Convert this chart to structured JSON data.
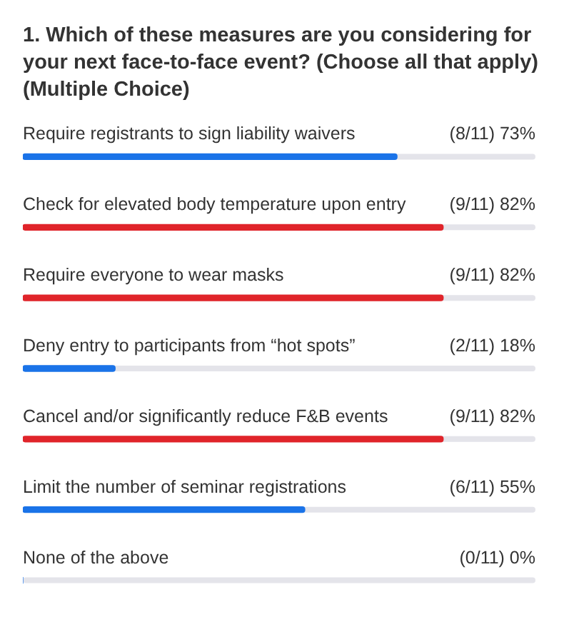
{
  "chart_data": {
    "type": "bar",
    "orientation": "horizontal",
    "title": "1. Which of these measures are you considering for your next face-to-face event? (Choose all that apply) (Multiple Choice)",
    "categories": [
      "Require registrants to sign liability waivers",
      "Check for elevated body temperature upon entry",
      "Require everyone to wear masks",
      "Deny entry to participants from “hot spots”",
      "Cancel and/or significantly reduce F&B events",
      "Limit the number of seminar registrations",
      "None of the above"
    ],
    "values": [
      73,
      82,
      82,
      18,
      82,
      55,
      0
    ],
    "colors": [
      "#1a73e8",
      "#e0242a",
      "#e0242a",
      "#1a73e8",
      "#e0242a",
      "#1a73e8",
      "#1a73e8"
    ],
    "value_labels": [
      "(8/11) 73%",
      "(9/11) 82%",
      "(9/11) 82%",
      "(2/11) 18%",
      "(9/11) 82%",
      "(6/11) 55%",
      "(0/11) 0%"
    ],
    "xlim": [
      0,
      100
    ],
    "tick_labels": false,
    "legend": false
  }
}
